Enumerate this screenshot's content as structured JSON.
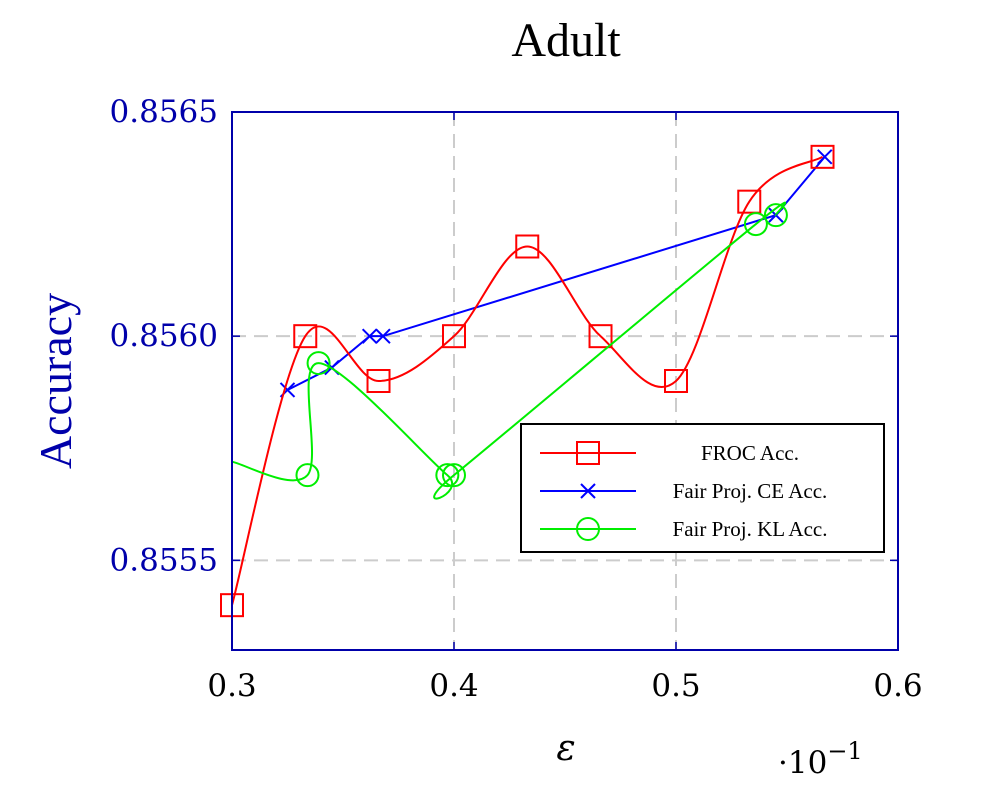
{
  "chart_data": {
    "type": "line",
    "title": "Adult",
    "xlabel": "ε",
    "ylabel": "Accuracy",
    "x_multiplier": "·10",
    "x_multiplier_exp": "−1",
    "xlim": [
      0.3,
      0.6
    ],
    "ylim": [
      0.8553,
      0.8565
    ],
    "xticks": [
      0.3,
      0.4,
      0.5,
      0.6
    ],
    "xtick_labels": [
      "0.3",
      "0.4",
      "0.5",
      "0.6"
    ],
    "yticks": [
      0.8555,
      0.856,
      0.8565
    ],
    "ytick_labels": [
      "0.8555",
      "0.8560",
      "0.8565"
    ],
    "grid": true,
    "legend_position": "right",
    "series": [
      {
        "name": "FROC Acc.",
        "color": "#ff0000",
        "marker": "square",
        "smooth": true,
        "x": [
          0.3,
          0.333,
          0.366,
          0.4,
          0.433,
          0.466,
          0.5,
          0.533,
          0.566
        ],
        "y": [
          0.8554,
          0.856,
          0.8559,
          0.856,
          0.8562,
          0.856,
          0.8559,
          0.8563,
          0.8564
        ]
      },
      {
        "name": "Fair Proj. CE Acc.",
        "color": "#0000ff",
        "marker": "cross",
        "smooth": false,
        "x": [
          0.325,
          0.345,
          0.362,
          0.368,
          0.545,
          0.567
        ],
        "y": [
          0.85588,
          0.85593,
          0.856,
          0.856,
          0.85627,
          0.8564
        ]
      },
      {
        "name": "Fair Proj. KL Acc.",
        "color": "#00ee00",
        "marker": "circle",
        "smooth": true,
        "x": [
          0.3,
          0.334,
          0.339,
          0.397,
          0.4,
          0.536,
          0.545
        ],
        "y": [
          0.85572,
          0.85569,
          0.85594,
          0.85569,
          0.85569,
          0.85625,
          0.85627
        ]
      }
    ]
  }
}
